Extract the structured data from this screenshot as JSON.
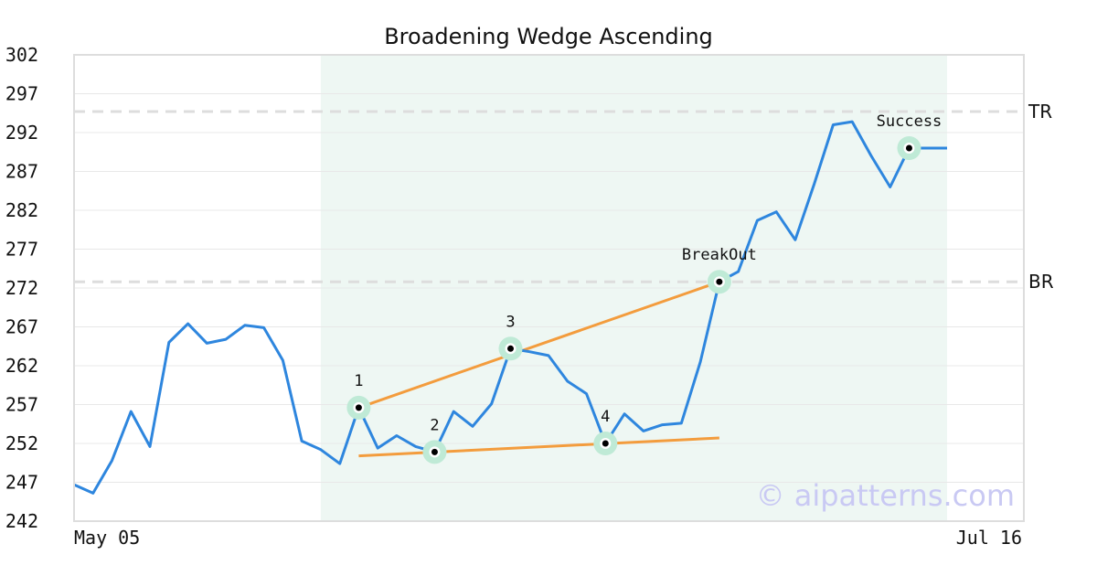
{
  "chart_data": {
    "type": "line",
    "title": "Broadening Wedge Ascending",
    "ylim": [
      242,
      302
    ],
    "yticks": [
      "302",
      "297",
      "292",
      "287",
      "282",
      "277",
      "272",
      "267",
      "262",
      "257",
      "252",
      "247",
      "242"
    ],
    "xticks": [
      "May 05",
      "Jul 16"
    ],
    "grid": true,
    "series": [
      {
        "values": [
          246.7,
          245.6,
          249.8,
          256.1,
          251.6,
          265.0,
          267.4,
          264.9,
          265.4,
          267.2,
          266.9,
          262.7,
          252.3,
          251.2,
          249.4,
          256.6,
          251.4,
          253.0,
          251.6,
          250.9,
          256.1,
          254.2,
          257.1,
          264.2,
          263.8,
          263.3,
          260.0,
          258.4,
          252.0,
          255.8,
          253.6,
          254.4,
          254.6,
          262.5,
          272.8,
          274.1,
          280.7,
          281.8,
          278.2,
          285.4,
          293.0,
          293.4,
          289.0,
          285.0,
          290.0,
          290.0,
          290.0
        ]
      }
    ],
    "pattern_zone": {
      "start_index": 13,
      "end_index": 46
    },
    "trend_lines": [
      {
        "from": [
          15,
          256.6
        ],
        "to": [
          34,
          272.8
        ]
      },
      {
        "from": [
          15,
          250.4
        ],
        "to": [
          34,
          252.7
        ]
      }
    ],
    "points": [
      {
        "label": "1",
        "index": 15,
        "value": 256.6
      },
      {
        "label": "2",
        "index": 19,
        "value": 250.9
      },
      {
        "label": "3",
        "index": 23,
        "value": 264.2
      },
      {
        "label": "4",
        "index": 28,
        "value": 252.0
      },
      {
        "label": "BreakOut",
        "index": 34,
        "value": 272.8
      },
      {
        "label": "Success",
        "index": 44,
        "value": 290.0
      }
    ],
    "levels": [
      {
        "label": "TR",
        "value": 294.7
      },
      {
        "label": "BR",
        "value": 272.8
      }
    ],
    "colors": {
      "line": "#2e86de",
      "trend": "#f39c3d",
      "zone": "#eef7f3",
      "marker_halo": "#bfead6",
      "level": "#dddddd",
      "grid": "#e8e8e8",
      "frame": "#dddddd"
    },
    "watermark": "© aipatterns.com"
  }
}
